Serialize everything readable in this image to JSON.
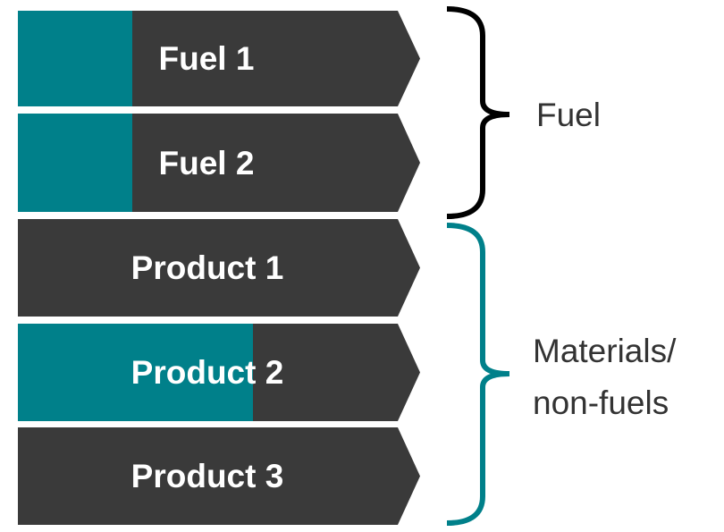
{
  "nodes": [
    {
      "label": "Fuel 1"
    },
    {
      "label": "Fuel 2"
    },
    {
      "label": "Product 1"
    },
    {
      "label": "Product 2"
    },
    {
      "label": "Product 3"
    }
  ],
  "groups": [
    {
      "lines": [
        "Fuel"
      ]
    },
    {
      "lines": [
        "Materials/",
        "non-fuels"
      ]
    }
  ]
}
